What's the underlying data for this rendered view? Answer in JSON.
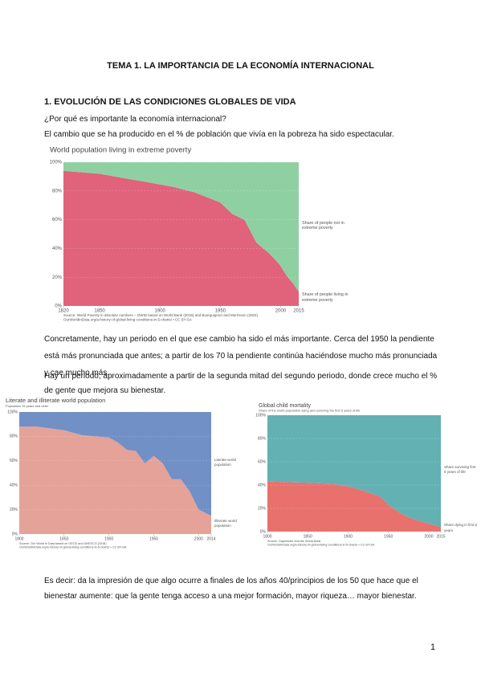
{
  "title": "TEMA 1. LA IMPORTANCIA DE LA ECONOMÍA INTERNACIONAL",
  "heading": "1. EVOLUCIÓN DE LAS CONDICIONES GLOBALES DE VIDA",
  "paragraphs": [
    "¿Por qué es importante la economía internacional?",
    "El cambio que se ha producido en el % de población que vivía en la pobreza ha sido espectacular.",
    "Concretamente, hay un periodo en el que ese cambio ha sido el más importante. Cerca del 1950 la pendiente está más pronunciada que antes; a partir de los 70 la pendiente continúa haciéndose mucho más pronunciada y cae mucho más.",
    "Hay un periodo, aproximadamente a partir de la segunda mitad del segundo periodo, donde crece mucho el % de gente que mejora su bienestar.",
    "Es decir: da la impresión de que algo ocurre a finales de los años 40/principios de los 50 que hace que el bienestar aumente: que la gente tenga acceso a una mejor formación, mayor riqueza… mayor bienestar."
  ],
  "page_number": "1",
  "chart_data": [
    {
      "type": "area",
      "stacked": true,
      "title": "World population living in extreme poverty",
      "source": [
        "Source: World Poverty in absolute numbers – OWID based on World Bank (2016) and Bourguignon and Morrisson (2002)",
        "OurWorldInData.org/a-history-of-global-living-conditions-in-5-charts/ • CC BY-SA"
      ],
      "x": [
        1820,
        1850,
        1870,
        1890,
        1910,
        1929,
        1950,
        1960,
        1970,
        1980,
        1990,
        1999,
        2005,
        2010,
        2015
      ],
      "series": [
        {
          "name": "Share of people living in extreme poverty",
          "color": "#e0627b",
          "values": [
            94,
            92,
            89,
            86,
            83,
            79,
            72,
            64,
            60,
            44,
            37,
            29,
            21,
            16,
            10
          ]
        },
        {
          "name": "Share of people not in extreme poverty",
          "color": "#8fd0a3",
          "values": [
            6,
            8,
            11,
            14,
            17,
            21,
            28,
            36,
            40,
            56,
            63,
            71,
            79,
            84,
            90
          ]
        }
      ],
      "xlim": [
        1820,
        2015
      ],
      "xticks": [
        1820,
        1850,
        1900,
        1950,
        2000,
        2015
      ],
      "ylim": [
        0,
        100
      ],
      "yticks": [
        {
          "value": 0,
          "label": "0%"
        },
        {
          "value": 20,
          "label": "20%"
        },
        {
          "value": 40,
          "label": "40%"
        },
        {
          "value": 60,
          "label": "60%"
        },
        {
          "value": 80,
          "label": "80%"
        },
        {
          "value": 100,
          "label": "100%"
        }
      ]
    },
    {
      "type": "area",
      "stacked": true,
      "title": "Literate and illiterate world population",
      "subtitle": "Population 15 years and older",
      "source": [
        "Source: Our World in Data based on OECD and UNESCO (2016)",
        "OurWorldInData.org/a-history-of-global-living-conditions-in-5-charts/ • CC BY-SA"
      ],
      "x": [
        1800,
        1820,
        1850,
        1870,
        1900,
        1910,
        1920,
        1930,
        1940,
        1950,
        1960,
        1970,
        1980,
        1990,
        2000,
        2014
      ],
      "series": [
        {
          "name": "Illiterate world population",
          "color": "#e4a298",
          "values": [
            88,
            88,
            85,
            81,
            79,
            75,
            69,
            68,
            58,
            64,
            58,
            45,
            45,
            35,
            20,
            15
          ]
        },
        {
          "name": "Literate world population",
          "color": "#7090c6",
          "values": [
            12,
            12,
            15,
            19,
            21,
            25,
            31,
            32,
            42,
            36,
            42,
            55,
            55,
            65,
            80,
            85
          ]
        }
      ],
      "xlim": [
        1800,
        2014
      ],
      "xticks": [
        1800,
        1850,
        1900,
        1950,
        2000,
        2014
      ],
      "ylim": [
        0,
        100
      ],
      "yticks": [
        {
          "value": 0,
          "label": "0%"
        },
        {
          "value": 20,
          "label": "20%"
        },
        {
          "value": 40,
          "label": "40%"
        },
        {
          "value": 60,
          "label": "60%"
        },
        {
          "value": 80,
          "label": "80%"
        },
        {
          "value": 100,
          "label": "100%"
        }
      ]
    },
    {
      "type": "area",
      "stacked": true,
      "title": "Global child mortality",
      "subtitle": "Share of the world population dying and surviving the first 5 years of life",
      "source": [
        "Source: Gapminder and the World Bank",
        "OurWorldInData.org/a-history-of-global-living-conditions-in-5-charts/ • CC BY-SA"
      ],
      "x": [
        1800,
        1850,
        1880,
        1900,
        1920,
        1940,
        1950,
        1960,
        1970,
        1980,
        1990,
        2000,
        2015
      ],
      "series": [
        {
          "name": "Share dying in first 5 years",
          "color": "#e8716d",
          "values": [
            43,
            42,
            41,
            39,
            35,
            30,
            23,
            18,
            14,
            11,
            9,
            7,
            4
          ]
        },
        {
          "name": "Share surviving first 5 years of life",
          "color": "#63b1b3",
          "values": [
            57,
            58,
            59,
            61,
            65,
            70,
            77,
            82,
            86,
            89,
            91,
            93,
            96
          ]
        }
      ],
      "xlim": [
        1800,
        2015
      ],
      "xticks": [
        1800,
        1850,
        1900,
        1950,
        2000,
        2015
      ],
      "ylim": [
        0,
        100
      ],
      "yticks": [
        {
          "value": 0,
          "label": "0%"
        },
        {
          "value": 20,
          "label": "20%"
        },
        {
          "value": 40,
          "label": "40%"
        },
        {
          "value": 60,
          "label": "60%"
        },
        {
          "value": 80,
          "label": "80%"
        },
        {
          "value": 100,
          "label": "100%"
        }
      ]
    }
  ]
}
